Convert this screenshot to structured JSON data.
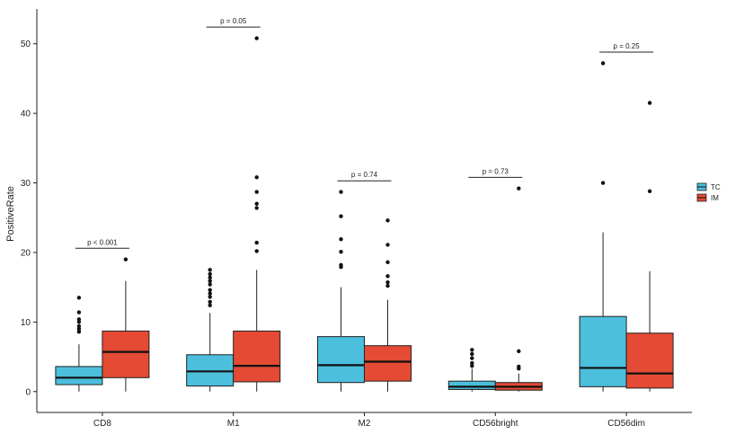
{
  "chart_data": {
    "type": "boxplot",
    "xlabel": "",
    "ylabel": "PositiveRate",
    "ylim": [
      -3,
      55
    ],
    "yticks": [
      0,
      10,
      20,
      30,
      40,
      50
    ],
    "categories": [
      "CD8",
      "M1",
      "M2",
      "CD56bright",
      "CD56dim"
    ],
    "legend": {
      "position": "right",
      "entries": [
        "TC",
        "IM"
      ]
    },
    "colors": {
      "TC": "#4bbfdc",
      "IM": "#e44a34"
    },
    "series": [
      {
        "name": "TC",
        "boxes": [
          {
            "category": "CD8",
            "whisker_low": 0,
            "q1": 1.0,
            "median": 2.0,
            "q3": 3.6,
            "whisker_high": 6.8,
            "outliers": [
              8.6,
              9.0,
              9.4,
              10.0,
              10.4,
              11.4,
              13.5
            ]
          },
          {
            "category": "M1",
            "whisker_low": 0,
            "q1": 0.8,
            "median": 2.9,
            "q3": 5.3,
            "whisker_high": 11.3,
            "outliers": [
              12.4,
              12.9,
              13.6,
              14.1,
              14.6,
              15.4,
              15.9,
              16.4,
              16.9,
              17.5
            ]
          },
          {
            "category": "M2",
            "whisker_low": 0,
            "q1": 1.3,
            "median": 3.8,
            "q3": 7.9,
            "whisker_high": 15.0,
            "outliers": [
              17.9,
              18.2,
              20.1,
              21.9,
              25.2,
              28.7
            ]
          },
          {
            "category": "CD56bright",
            "whisker_low": 0,
            "q1": 0.3,
            "median": 0.7,
            "q3": 1.5,
            "whisker_high": 3.3,
            "outliers": [
              3.7,
              4.1,
              4.8,
              5.4,
              6.0
            ]
          },
          {
            "category": "CD56dim",
            "whisker_low": 0,
            "q1": 0.7,
            "median": 3.4,
            "q3": 10.8,
            "whisker_high": 22.9,
            "outliers": [
              30.0,
              47.2
            ]
          }
        ]
      },
      {
        "name": "IM",
        "boxes": [
          {
            "category": "CD8",
            "whisker_low": 0,
            "q1": 2.0,
            "median": 5.7,
            "q3": 8.7,
            "whisker_high": 15.9,
            "outliers": [
              19.0
            ]
          },
          {
            "category": "M1",
            "whisker_low": 0,
            "q1": 1.4,
            "median": 3.7,
            "q3": 8.7,
            "whisker_high": 17.5,
            "outliers": [
              20.2,
              21.4,
              26.4,
              27.0,
              28.7,
              30.8,
              50.8
            ]
          },
          {
            "category": "M2",
            "whisker_low": 0,
            "q1": 1.5,
            "median": 4.3,
            "q3": 6.6,
            "whisker_high": 13.2,
            "outliers": [
              15.2,
              15.7,
              16.6,
              18.6,
              21.1,
              24.6
            ]
          },
          {
            "category": "CD56bright",
            "whisker_low": 0,
            "q1": 0.2,
            "median": 0.7,
            "q3": 1.3,
            "whisker_high": 2.6,
            "outliers": [
              3.3,
              3.6,
              5.8,
              29.2
            ]
          },
          {
            "category": "CD56dim",
            "whisker_low": 0,
            "q1": 0.5,
            "median": 2.6,
            "q3": 8.4,
            "whisker_high": 17.3,
            "outliers": [
              28.8,
              41.5
            ]
          }
        ]
      }
    ],
    "annotations": [
      {
        "category": "CD8",
        "text": "p < 0.001",
        "y": 20.6
      },
      {
        "category": "M1",
        "text": "p = 0.05",
        "y": 52.4
      },
      {
        "category": "M2",
        "text": "p = 0.74",
        "y": 30.3
      },
      {
        "category": "CD56bright",
        "text": "p = 0.73",
        "y": 30.8
      },
      {
        "category": "CD56dim",
        "text": "p = 0.25",
        "y": 48.8
      }
    ]
  }
}
